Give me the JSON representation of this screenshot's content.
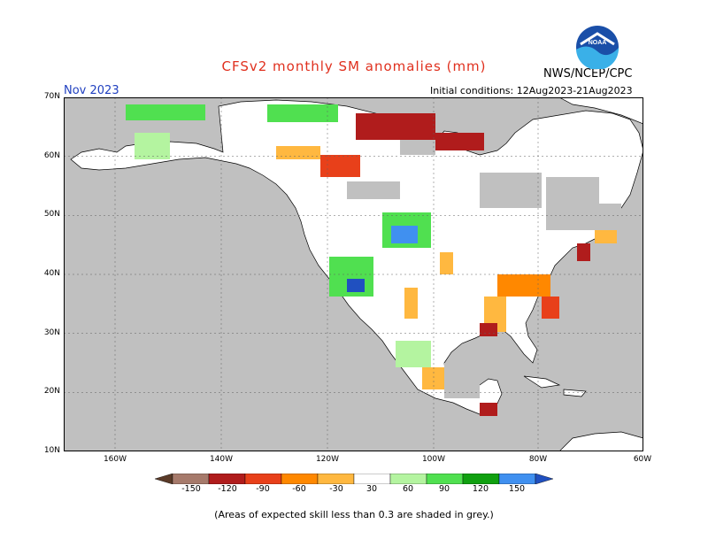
{
  "header": {
    "title": "CFSv2 monthly SM anomalies (mm)",
    "month": "Nov 2023",
    "initial_conditions": "Initial conditions: 12Aug2023-21Aug2023",
    "agency": "NWS/NCEP/CPC",
    "logo_text": "NOAA"
  },
  "map": {
    "lat_labels": [
      "70N",
      "60N",
      "50N",
      "40N",
      "30N",
      "20N",
      "10N"
    ],
    "lon_labels": [
      "160W",
      "140W",
      "120W",
      "100W",
      "80W",
      "60W"
    ],
    "skill_shading_color": "#c0c0c0",
    "ocean_color": "#c0c0c0",
    "land_color": "#ffffff"
  },
  "colorbar": {
    "labels": [
      "-150",
      "-120",
      "-90",
      "-60",
      "-30",
      "30",
      "60",
      "90",
      "120",
      "150"
    ],
    "colors": [
      "#5a3a28",
      "#a67a6b",
      "#b01c1c",
      "#e8401a",
      "#ff8800",
      "#ffb840",
      "#ffffff",
      "#b4f4a0",
      "#50e050",
      "#10a010",
      "#4090f0",
      "#2050c0"
    ]
  },
  "footer": {
    "note": "(Areas of expected skill less than 0.3 are shaded in grey.)"
  }
}
